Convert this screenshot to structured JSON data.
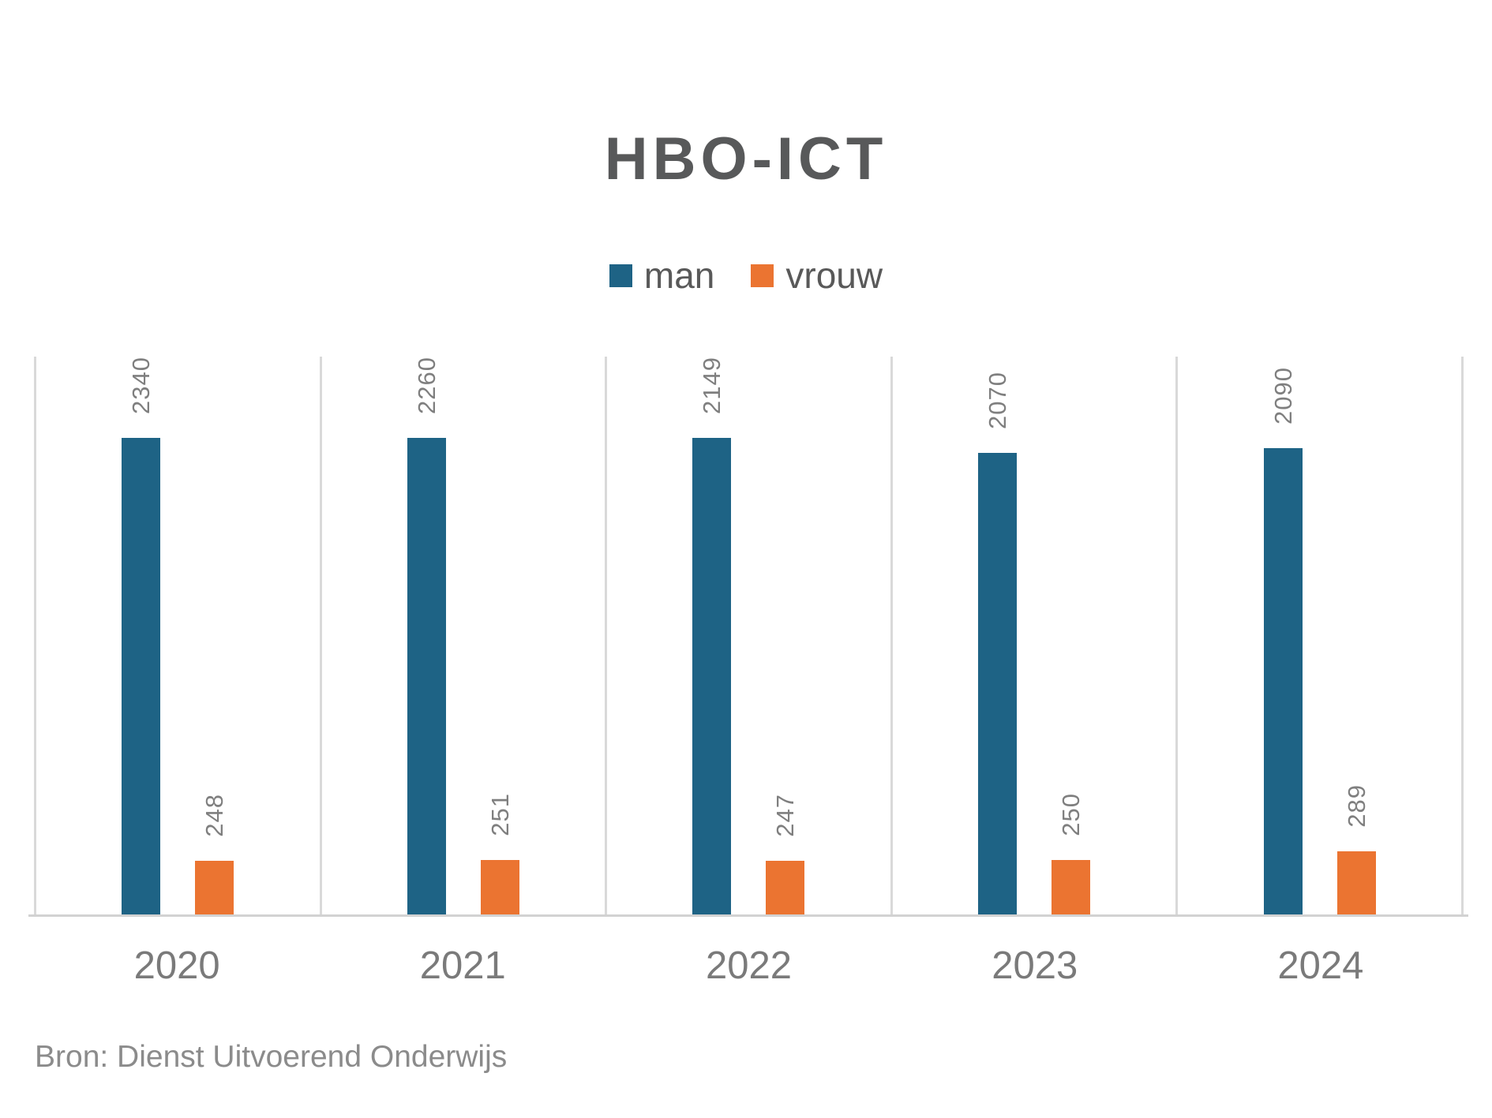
{
  "title": "HBO-ICT",
  "legend": {
    "items": [
      {
        "label": "man",
        "color": "#1e6385"
      },
      {
        "label": "vrouw",
        "color": "#eb7431"
      }
    ]
  },
  "source_note": "Bron: Dienst Uitvoerend Onderwijs",
  "colors": {
    "man_bar": "#1e6385",
    "vrouw_bar": "#eb7431",
    "gridline": "#d9d9d9",
    "axis_line": "#d2d2d2",
    "title_text": "#58595a",
    "legend_text": "#595959",
    "value_label_text": "#7f7f7f",
    "tick_text": "#7a7a7a",
    "source_text": "#8b8b8b"
  },
  "chart_data": {
    "type": "bar",
    "title": "HBO-ICT",
    "categories": [
      "2020",
      "2021",
      "2022",
      "2023",
      "2024"
    ],
    "series": [
      {
        "name": "man",
        "color": "#1e6385",
        "values": [
          2340,
          2260,
          2149,
          2070,
          2090
        ]
      },
      {
        "name": "vrouw",
        "color": "#eb7431",
        "values": [
          248,
          251,
          247,
          250,
          289
        ]
      }
    ],
    "ylim": [
      0,
      2500
    ],
    "xlabel": "",
    "ylabel": "",
    "grid": "vertical category separators only, no horizontal gridlines, no y-axis",
    "legend_position": "top-center",
    "data_labels": "values rotated 90° CCW above each bar",
    "source": "Bron: Dienst Uitvoerend Onderwijs"
  }
}
